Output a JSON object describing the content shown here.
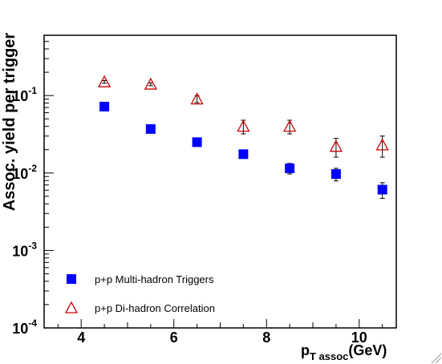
{
  "chart_data": {
    "type": "scatter",
    "xlabel": "p",
    "xlabel_sub": "T assoc",
    "xlabel_unit": "(GeV)",
    "ylabel": "Assoc. yield per trigger",
    "xlim": [
      3.2,
      10.8
    ],
    "ylim": [
      0.0001,
      0.6
    ],
    "yscale": "log",
    "x_ticks": [
      4,
      6,
      8,
      10
    ],
    "y_ticks": [
      {
        "base": "10",
        "exp": "-4",
        "value": 0.0001
      },
      {
        "base": "10",
        "exp": "-3",
        "value": 0.001
      },
      {
        "base": "10",
        "exp": "-2",
        "value": 0.01
      },
      {
        "base": "10",
        "exp": "-1",
        "value": 0.1
      }
    ],
    "grid": false,
    "legend_position": "bottom-left",
    "series": [
      {
        "name": "p+p Multi-hadron Triggers",
        "marker": "filled-square",
        "color": "#0000ff",
        "x": [
          4.5,
          5.5,
          6.5,
          7.5,
          8.5,
          9.5,
          10.5
        ],
        "y": [
          0.072,
          0.037,
          0.025,
          0.0175,
          0.0115,
          0.0097,
          0.0061
        ],
        "err": [
          0.004,
          0.002,
          0.0015,
          0.0018,
          0.0018,
          0.0018,
          0.0014
        ]
      },
      {
        "name": "p+p Di-hadron Correlation",
        "marker": "open-triangle",
        "color": "#cc0000",
        "x": [
          4.5,
          5.5,
          6.5,
          7.5,
          8.5,
          9.5,
          10.5
        ],
        "y": [
          0.15,
          0.14,
          0.09,
          0.04,
          0.04,
          0.022,
          0.023
        ],
        "err": [
          0.006,
          0.006,
          0.009,
          0.008,
          0.008,
          0.006,
          0.007
        ]
      }
    ]
  }
}
